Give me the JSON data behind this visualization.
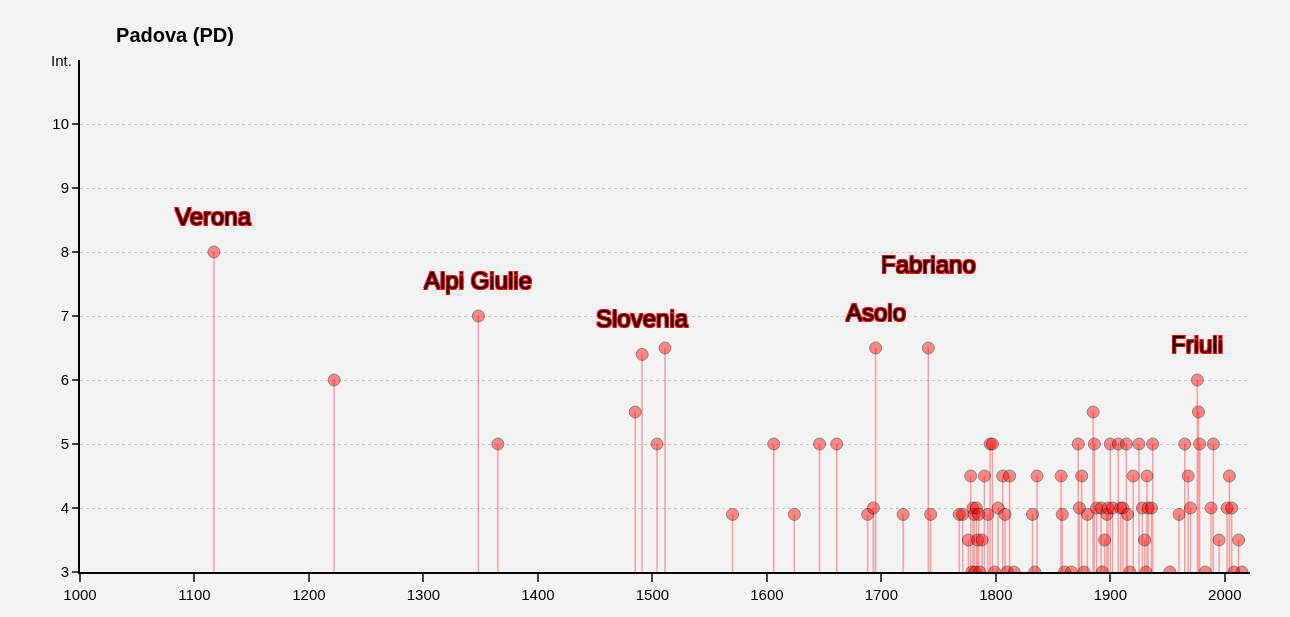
{
  "chart_data": {
    "type": "lollipop",
    "title": "Padova (PD)",
    "ylabel": "Int.",
    "x": [
      1117,
      1222,
      1348,
      1365,
      1485,
      1491,
      1504,
      1511,
      1570,
      1606,
      1624,
      1646,
      1661,
      1688,
      1693,
      1695,
      1719,
      1741,
      1743,
      1768,
      1771,
      1776,
      1778,
      1779,
      1780,
      1781,
      1782,
      1783,
      1784,
      1785,
      1786,
      1788,
      1790,
      1793,
      1795,
      1797,
      1799,
      1802,
      1806,
      1808,
      1810,
      1812,
      1816,
      1832,
      1834,
      1836,
      1857,
      1858,
      1860,
      1866,
      1872,
      1873,
      1875,
      1877,
      1880,
      1885,
      1886,
      1888,
      1892,
      1893,
      1895,
      1897,
      1898,
      1900,
      1902,
      1907,
      1909,
      1911,
      1914,
      1915,
      1917,
      1920,
      1925,
      1928,
      1930,
      1931,
      1932,
      1933,
      1936,
      1937,
      1952,
      1960,
      1965,
      1968,
      1970,
      1976,
      1977,
      1978,
      1983,
      1988,
      1990,
      1995,
      2002,
      2004,
      2006,
      2008,
      2012,
      2015
    ],
    "values": [
      8,
      6,
      7,
      5,
      5.5,
      6.4,
      5,
      6.5,
      3.9,
      5,
      3.9,
      5,
      5,
      3.9,
      4,
      6.5,
      3.9,
      6.5,
      3.9,
      3.9,
      3.9,
      3.5,
      4.5,
      3,
      4,
      3.9,
      3,
      4,
      3.5,
      3.9,
      3,
      3.5,
      4.5,
      3.9,
      5,
      5,
      3,
      4,
      4.5,
      3.9,
      3,
      4.5,
      3,
      3.9,
      3,
      4.5,
      4.5,
      3.9,
      3,
      3,
      5,
      4,
      4.5,
      3,
      3.9,
      5.5,
      5,
      4,
      4,
      3,
      3.5,
      3.9,
      4,
      5,
      4,
      5,
      4,
      4,
      5,
      3.9,
      3,
      4.5,
      5,
      4,
      3.5,
      3,
      4.5,
      4,
      4,
      5,
      3,
      3.9,
      5,
      4.5,
      4,
      6,
      5.5,
      5,
      3,
      4,
      5,
      3.5,
      4,
      4.5,
      4,
      3,
      3.5,
      3
    ],
    "color": "#ff0000",
    "xlim": [
      1000,
      2022
    ],
    "xticks": [
      1000,
      1100,
      1200,
      1300,
      1400,
      1500,
      1600,
      1700,
      1800,
      1900,
      2000
    ],
    "ylim": [
      3,
      11
    ],
    "yticks": [
      3,
      4,
      5,
      6,
      7,
      8,
      9,
      10
    ],
    "grid": "y",
    "marker": "circle",
    "annotations": [
      {
        "text": "Verona",
        "x": 1117,
        "y": 8
      },
      {
        "text": "Alpi Giulie",
        "x": 1348,
        "y": 7
      },
      {
        "text": "Slovenia",
        "x": 1491,
        "y": 6.4
      },
      {
        "text": "Asolo",
        "x": 1695,
        "y": 6.5
      },
      {
        "text": "Fabriano",
        "x": 1741,
        "y": 6.5
      },
      {
        "text": "Friuli",
        "x": 1976,
        "y": 6
      }
    ]
  }
}
